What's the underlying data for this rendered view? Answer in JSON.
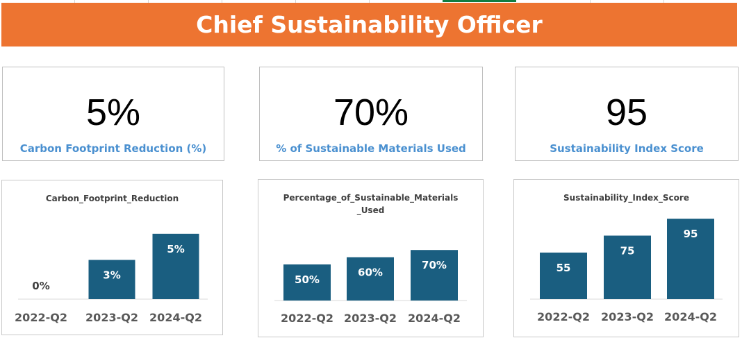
{
  "header": {
    "title": "Chief Sustainability Officer"
  },
  "kpis": [
    {
      "value": "5%",
      "label": "Carbon Footprint Reduction (%)"
    },
    {
      "value": "70%",
      "label": "% of Sustainable Materials Used"
    },
    {
      "value": "95",
      "label": "Sustainability Index Score"
    }
  ],
  "colors": {
    "banner": "#ed7431",
    "bar": "#1a5e80",
    "kpi_label": "#4a90d0"
  },
  "chart_data": [
    {
      "type": "bar",
      "title": "Carbon_Footprint_Reduction",
      "categories": [
        "2022-Q2",
        "2023-Q2",
        "2024-Q2"
      ],
      "values": [
        0,
        3,
        5
      ],
      "data_labels": [
        "0%",
        "3%",
        "5%"
      ],
      "ylim": [
        0,
        6
      ]
    },
    {
      "type": "bar",
      "title": "Percentage_of_Sustainable_Materials_Used",
      "categories": [
        "2022-Q2",
        "2023-Q2",
        "2024-Q2"
      ],
      "values": [
        50,
        60,
        70
      ],
      "data_labels": [
        "50%",
        "60%",
        "70%"
      ],
      "ylim": [
        0,
        100
      ]
    },
    {
      "type": "bar",
      "title": "Sustainability_Index_Score",
      "categories": [
        "2022-Q2",
        "2023-Q2",
        "2024-Q2"
      ],
      "values": [
        55,
        75,
        95
      ],
      "data_labels": [
        "55",
        "75",
        "95"
      ],
      "ylim": [
        0,
        100
      ]
    }
  ]
}
